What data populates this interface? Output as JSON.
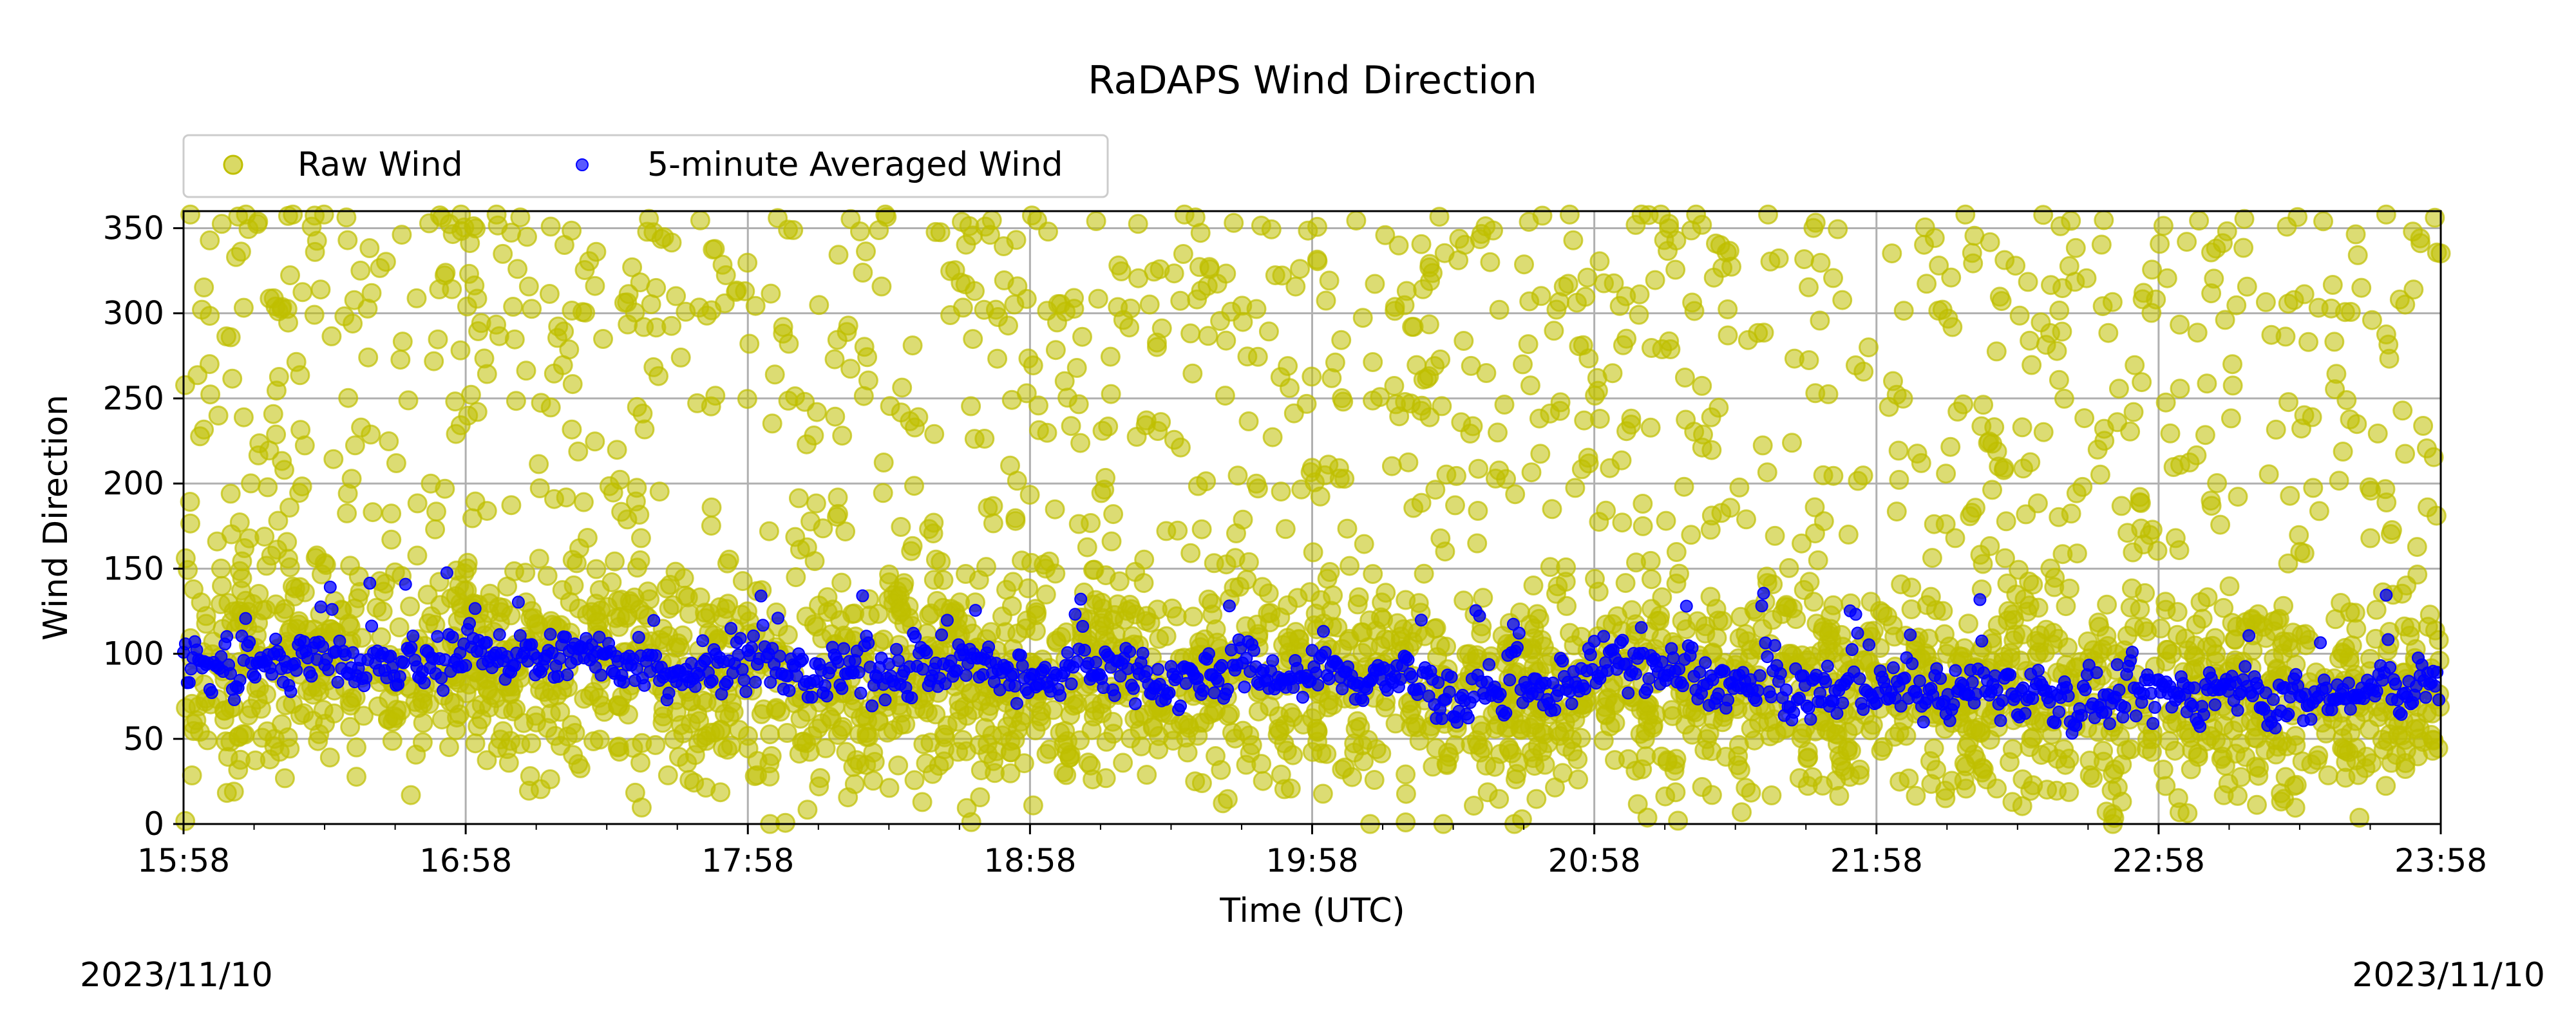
{
  "colors": {
    "raw": "#bfbf00",
    "avg": "#0000ff",
    "grid": "#b0b0b0",
    "axis": "#000000"
  },
  "chart_data": {
    "type": "scatter",
    "title": "RaDAPS Wind Direction",
    "xlabel": "Time (UTC)",
    "ylabel": "Wind Direction",
    "xlim": [
      "15:58",
      "23:58"
    ],
    "ylim": [
      0,
      360
    ],
    "x_ticks": [
      "15:58",
      "16:58",
      "17:58",
      "18:58",
      "19:58",
      "20:58",
      "21:58",
      "22:58",
      "23:58"
    ],
    "y_ticks": [
      0,
      50,
      100,
      150,
      200,
      250,
      300,
      350
    ],
    "grid": true,
    "legend_position": "top-left above plot",
    "date_left": "2023/11/10",
    "date_right": "2023/11/10",
    "series": [
      {
        "name": "Raw Wind",
        "marker": "circle",
        "color": "#bfbf00",
        "note_values": "dense scatter around the 5-minute average, wide spread 0-360 deg"
      },
      {
        "name": "5-minute Averaged Wind",
        "marker": "circle",
        "color": "#0000ff",
        "x": [
          "15:58",
          "16:13",
          "16:28",
          "16:43",
          "16:58",
          "17:13",
          "17:28",
          "17:43",
          "17:58",
          "18:13",
          "18:28",
          "18:43",
          "18:58",
          "19:13",
          "19:28",
          "19:43",
          "19:58",
          "20:13",
          "20:28",
          "20:43",
          "20:58",
          "21:13",
          "21:28",
          "21:43",
          "21:58",
          "22:13",
          "22:28",
          "22:43",
          "22:58",
          "23:13",
          "23:28",
          "23:43",
          "23:58"
        ],
        "values": [
          95,
          90,
          100,
          88,
          105,
          95,
          100,
          90,
          95,
          85,
          90,
          95,
          80,
          95,
          85,
          90,
          85,
          88,
          75,
          72,
          95,
          90,
          80,
          78,
          80,
          75,
          80,
          70,
          75,
          80,
          70,
          78,
          85
        ]
      }
    ]
  }
}
